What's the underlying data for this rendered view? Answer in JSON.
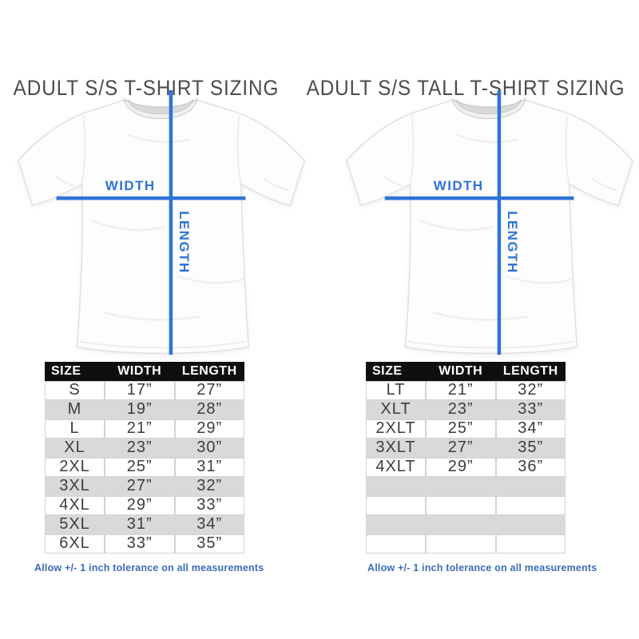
{
  "colors": {
    "accent_blue": "#2e73d6",
    "note_blue": "#3a6cba",
    "title_gray": "#4b4b4b",
    "header_bg": "#0f0f0f",
    "header_text": "#ffffff",
    "row_alt_gray": "#d9d9d9",
    "cell_border": "#d2d2d2",
    "data_text": "#3d3d3d"
  },
  "sections": [
    {
      "title": "ADULT S/S T-SHIRT SIZING",
      "diagram": {
        "width_label": "WIDTH",
        "length_label": "LENGTH"
      },
      "table": {
        "headers": [
          "SIZE",
          "WIDTH",
          "LENGTH"
        ],
        "rows": [
          [
            "S",
            "17”",
            "27”"
          ],
          [
            "M",
            "19”",
            "28”"
          ],
          [
            "L",
            "21”",
            "29”"
          ],
          [
            "XL",
            "23”",
            "30”"
          ],
          [
            "2XL",
            "25”",
            "31”"
          ],
          [
            "3XL",
            "27”",
            "32”"
          ],
          [
            "4XL",
            "29”",
            "33”"
          ],
          [
            "5XL",
            "31”",
            "34”"
          ],
          [
            "6XL",
            "33”",
            "35”"
          ]
        ],
        "empty_rows": 0
      },
      "footnote": "Allow +/- 1 inch tolerance on all measurements"
    },
    {
      "title": "ADULT S/S TALL T-SHIRT SIZING",
      "diagram": {
        "width_label": "WIDTH",
        "length_label": "LENGTH"
      },
      "table": {
        "headers": [
          "SIZE",
          "WIDTH",
          "LENGTH"
        ],
        "rows": [
          [
            "LT",
            "21”",
            "32”"
          ],
          [
            "XLT",
            "23”",
            "33”"
          ],
          [
            "2XLT",
            "25”",
            "34”"
          ],
          [
            "3XLT",
            "27”",
            "35”"
          ],
          [
            "4XLT",
            "29”",
            "36”"
          ]
        ],
        "empty_rows": 4
      },
      "footnote": "Allow +/- 1 inch tolerance on all measurements"
    }
  ],
  "chart_data": [
    {
      "type": "table",
      "title": "ADULT S/S T-SHIRT SIZING",
      "columns": [
        "SIZE",
        "WIDTH",
        "LENGTH"
      ],
      "rows": [
        [
          "S",
          "17\"",
          "27\""
        ],
        [
          "M",
          "19\"",
          "28\""
        ],
        [
          "L",
          "21\"",
          "29\""
        ],
        [
          "XL",
          "23\"",
          "30\""
        ],
        [
          "2XL",
          "25\"",
          "31\""
        ],
        [
          "3XL",
          "27\"",
          "32\""
        ],
        [
          "4XL",
          "29\"",
          "33\""
        ],
        [
          "5XL",
          "31\"",
          "34\""
        ],
        [
          "6XL",
          "33\"",
          "35\""
        ]
      ],
      "note": "Allow +/- 1 inch tolerance on all measurements"
    },
    {
      "type": "table",
      "title": "ADULT S/S TALL T-SHIRT SIZING",
      "columns": [
        "SIZE",
        "WIDTH",
        "LENGTH"
      ],
      "rows": [
        [
          "LT",
          "21\"",
          "32\""
        ],
        [
          "XLT",
          "23\"",
          "33\""
        ],
        [
          "2XLT",
          "25\"",
          "34\""
        ],
        [
          "3XLT",
          "27\"",
          "35\""
        ],
        [
          "4XLT",
          "29\"",
          "36\""
        ]
      ],
      "note": "Allow +/- 1 inch tolerance on all measurements"
    }
  ]
}
